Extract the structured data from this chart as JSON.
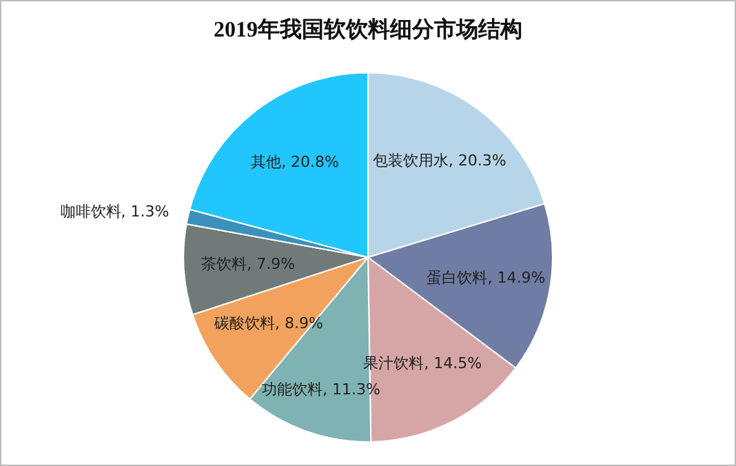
{
  "chart_data": {
    "type": "pie",
    "title": "2019年我国软饮料细分市场结构",
    "categories": [
      "包装饮用水",
      "蛋白饮料",
      "果汁饮料",
      "功能饮料",
      "碳酸饮料",
      "茶饮料",
      "咖啡饮料",
      "其他"
    ],
    "values": [
      20.3,
      14.9,
      14.5,
      11.3,
      8.9,
      7.9,
      1.3,
      20.8
    ],
    "value_labels": [
      "20.3%",
      "14.9%",
      "14.5%",
      "11.3%",
      "8.9%",
      "7.9%",
      "1.3%",
      "20.8%"
    ],
    "colors": [
      "#b7d5e8",
      "#6f7ca3",
      "#d6a6a6",
      "#7fb2b2",
      "#f2a25c",
      "#707b79",
      "#3a91bb",
      "#22c6ff"
    ],
    "legend": false
  }
}
